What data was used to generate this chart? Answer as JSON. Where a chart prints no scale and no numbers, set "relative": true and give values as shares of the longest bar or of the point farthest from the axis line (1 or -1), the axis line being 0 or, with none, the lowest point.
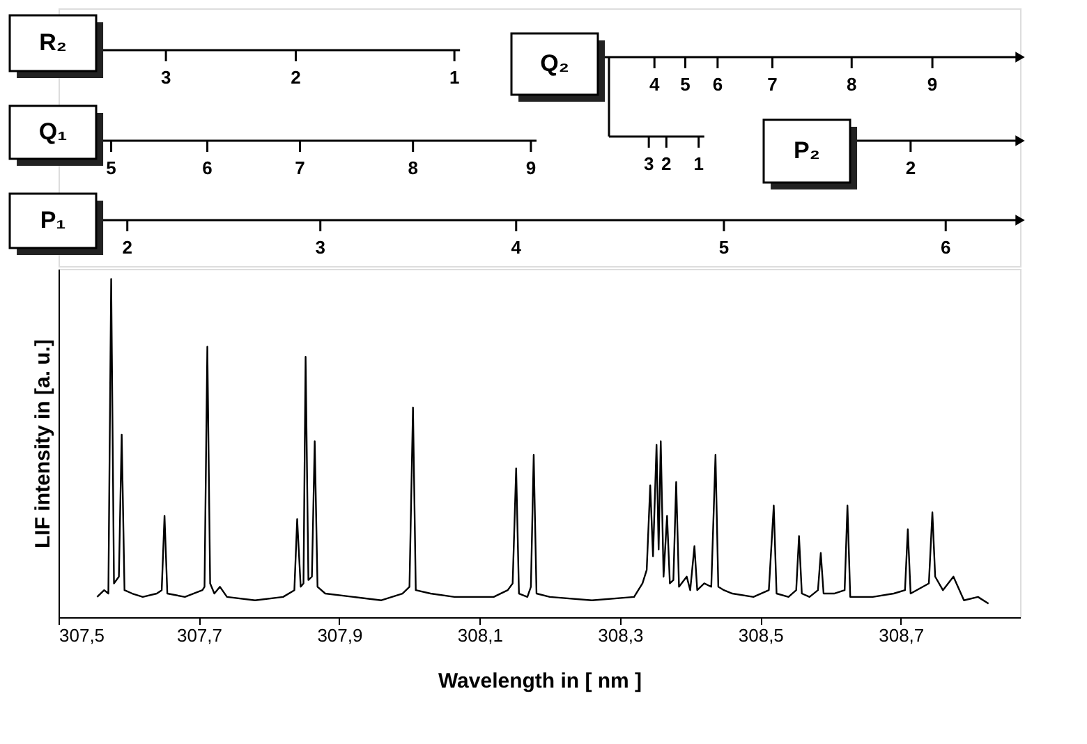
{
  "chart_data": {
    "type": "line",
    "relative": true,
    "xlabel": "Wavelength in [ nm ]",
    "ylabel": "LIF intensity in [a. u.]",
    "xlim": [
      307.5,
      308.87
    ],
    "xticks": [
      {
        "value": 307.5,
        "label": "307,5"
      },
      {
        "value": 307.7,
        "label": "307,7"
      },
      {
        "value": 307.9,
        "label": "307,9"
      },
      {
        "value": 308.1,
        "label": "308,1"
      },
      {
        "value": 308.3,
        "label": "308,3"
      },
      {
        "value": 308.5,
        "label": "308,5"
      },
      {
        "value": 308.7,
        "label": "308,7"
      }
    ],
    "grid": false,
    "marker": "none",
    "line_style": "solid",
    "x": [
      307.555,
      307.565,
      307.571,
      307.575,
      307.579,
      307.586,
      307.59,
      307.594,
      307.605,
      307.62,
      307.64,
      307.647,
      307.651,
      307.655,
      307.68,
      307.705,
      307.708,
      307.712,
      307.716,
      307.722,
      307.73,
      307.74,
      307.78,
      307.82,
      307.836,
      307.84,
      307.845,
      307.849,
      307.852,
      307.856,
      307.861,
      307.865,
      307.869,
      307.88,
      307.92,
      307.96,
      307.99,
      308.0,
      308.005,
      308.009,
      308.03,
      308.064,
      308.08,
      308.12,
      308.14,
      308.147,
      308.152,
      308.156,
      308.168,
      308.173,
      308.177,
      308.181,
      308.2,
      308.26,
      308.32,
      308.332,
      308.338,
      308.343,
      308.347,
      308.352,
      308.355,
      308.358,
      308.362,
      308.367,
      308.371,
      308.376,
      308.38,
      308.384,
      308.395,
      308.4,
      308.406,
      308.41,
      308.42,
      308.43,
      308.436,
      308.44,
      308.448,
      308.46,
      308.49,
      308.512,
      308.519,
      308.523,
      308.54,
      308.551,
      308.555,
      308.559,
      308.57,
      308.582,
      308.586,
      308.59,
      308.605,
      308.62,
      308.624,
      308.628,
      308.66,
      308.69,
      308.706,
      308.71,
      308.714,
      308.74,
      308.745,
      308.749,
      308.76,
      308.775,
      308.79,
      308.81,
      308.825
    ],
    "series": [
      {
        "color": "#000000",
        "values": [
          0.06,
          0.08,
          0.07,
          1.0,
          0.1,
          0.12,
          0.54,
          0.08,
          0.07,
          0.06,
          0.07,
          0.08,
          0.3,
          0.07,
          0.06,
          0.08,
          0.09,
          0.8,
          0.1,
          0.07,
          0.09,
          0.06,
          0.05,
          0.06,
          0.08,
          0.29,
          0.09,
          0.1,
          0.77,
          0.11,
          0.12,
          0.52,
          0.09,
          0.07,
          0.06,
          0.05,
          0.07,
          0.09,
          0.62,
          0.08,
          0.07,
          0.06,
          0.06,
          0.06,
          0.08,
          0.1,
          0.44,
          0.07,
          0.06,
          0.09,
          0.48,
          0.07,
          0.06,
          0.05,
          0.06,
          0.1,
          0.14,
          0.39,
          0.18,
          0.51,
          0.2,
          0.52,
          0.12,
          0.3,
          0.1,
          0.11,
          0.4,
          0.09,
          0.12,
          0.08,
          0.21,
          0.08,
          0.1,
          0.09,
          0.48,
          0.09,
          0.08,
          0.07,
          0.06,
          0.08,
          0.33,
          0.07,
          0.06,
          0.08,
          0.24,
          0.07,
          0.06,
          0.08,
          0.19,
          0.07,
          0.07,
          0.08,
          0.33,
          0.06,
          0.06,
          0.07,
          0.08,
          0.26,
          0.07,
          0.1,
          0.31,
          0.12,
          0.08,
          0.12,
          0.05,
          0.06,
          0.04
        ]
      }
    ],
    "annotations": [
      "R₂",
      {
        "text": "3",
        "x": 307.653
      },
      {
        "text": "2",
        "x": 307.838
      },
      {
        "text": "1",
        "x": 308.064
      },
      "Q₂",
      {
        "text": "4",
        "x": 308.349
      },
      {
        "text": "5",
        "x": 308.393
      },
      {
        "text": "6",
        "x": 308.439
      },
      {
        "text": "7",
        "x": 308.517
      },
      {
        "text": "8",
        "x": 308.63
      },
      {
        "text": "9",
        "x": 308.745
      },
      {
        "text": "3",
        "x": 308.341
      },
      {
        "text": "2",
        "x": 308.366
      },
      {
        "text": "1",
        "x": 308.412
      },
      "Q₁",
      {
        "text": "5",
        "x": 307.575
      },
      {
        "text": "6",
        "x": 307.712
      },
      {
        "text": "7",
        "x": 307.844
      },
      {
        "text": "8",
        "x": 308.005
      },
      {
        "text": "9",
        "x": 308.173
      },
      "P₂",
      {
        "text": "2",
        "x": 308.714
      },
      "P₁",
      {
        "text": "2",
        "x": 307.598
      },
      {
        "text": "3",
        "x": 307.873
      },
      {
        "text": "4",
        "x": 308.152
      },
      {
        "text": "5",
        "x": 308.448
      },
      {
        "text": "6",
        "x": 308.764
      }
    ]
  }
}
